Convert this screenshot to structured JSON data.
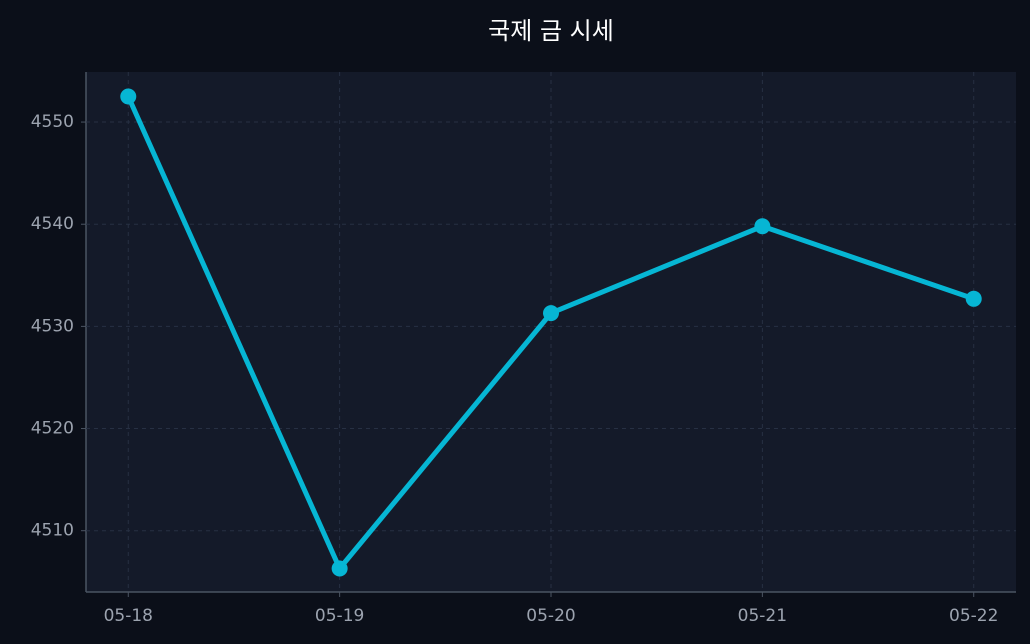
{
  "chart_data": {
    "type": "line",
    "title": "국제 금 시세",
    "categories": [
      "05-18",
      "05-19",
      "05-20",
      "05-21",
      "05-22"
    ],
    "series": [
      {
        "name": "국제 금 시세",
        "color": "#06b6d4",
        "values": [
          4552.5,
          4506.3,
          4531.3,
          4539.8,
          4532.7
        ]
      }
    ],
    "ylim": [
      4504,
      4554.9
    ],
    "yticks": [
      4510,
      4520,
      4530,
      4540,
      4550
    ],
    "grid": true
  }
}
